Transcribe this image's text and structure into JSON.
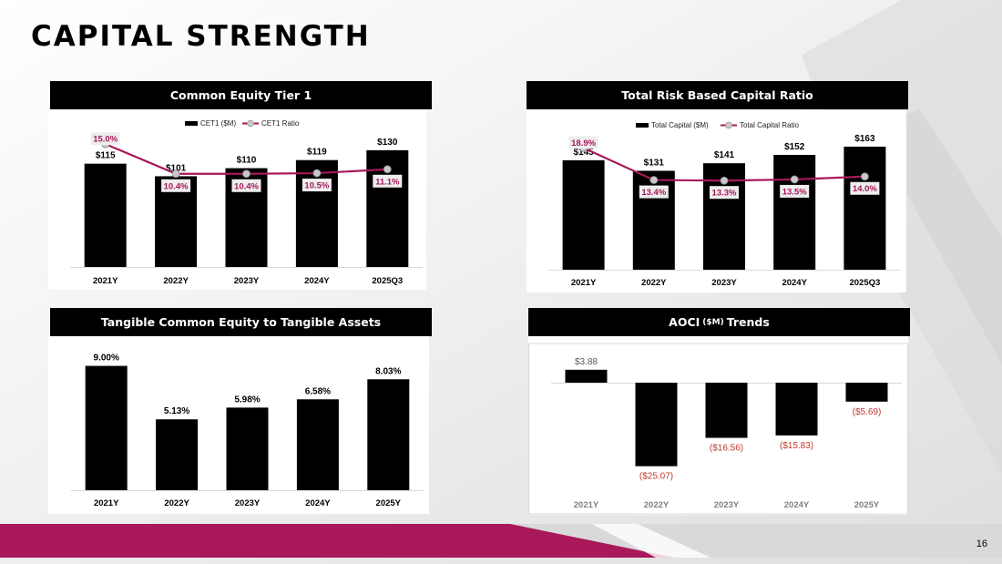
{
  "page": {
    "title": "CAPITAL STRENGTH",
    "page_number": "16",
    "accent_color": "#a8185a"
  },
  "panels": {
    "cet1": {
      "heading": "Common Equity Tier 1"
    },
    "trbc": {
      "heading": "Total Risk Based Capital Ratio"
    },
    "tce": {
      "heading": "Tangible Common Equity to Tangible Assets"
    },
    "aoci": {
      "heading_main": "AOCI",
      "heading_unit": "($M)",
      "heading_tail": "Trends"
    }
  },
  "chart_data": [
    {
      "id": "cet1",
      "type": "bar+line",
      "title": "Common Equity Tier 1",
      "categories": [
        "2021Y",
        "2022Y",
        "2023Y",
        "2024Y",
        "2025Q3"
      ],
      "legend_position": "top",
      "bar_series": {
        "name": "CET1 ($M)",
        "values": [
          115,
          101,
          110,
          119,
          130
        ],
        "labels": [
          "$115",
          "$101",
          "$110",
          "$119",
          "$130"
        ],
        "color": "#000000"
      },
      "line_series": {
        "name": "CET1 Ratio",
        "values": [
          15.0,
          10.4,
          10.4,
          10.5,
          11.1
        ],
        "labels": [
          "15.0%",
          "10.4%",
          "10.4%",
          "10.5%",
          "11.1%"
        ],
        "color": "#a8185a"
      },
      "bar_ylim": [
        0,
        140
      ],
      "line_ylim": [
        -4,
        16
      ]
    },
    {
      "id": "trbc",
      "type": "bar+line",
      "title": "Total Risk Based Capital Ratio",
      "categories": [
        "2021Y",
        "2022Y",
        "2023Y",
        "2024Y",
        "2025Q3"
      ],
      "legend_position": "top",
      "bar_series": {
        "name": "Total Capital ($M)",
        "values": [
          145,
          131,
          141,
          152,
          163
        ],
        "labels": [
          "$145",
          "$131",
          "$141",
          "$152",
          "$163"
        ],
        "color": "#000000"
      },
      "line_series": {
        "name": "Total Capital Ratio",
        "values": [
          18.9,
          13.4,
          13.3,
          13.5,
          14.0
        ],
        "labels": [
          "18.9%",
          "13.4%",
          "13.3%",
          "13.5%",
          "14.0%"
        ],
        "color": "#a8185a"
      },
      "bar_ylim": [
        0,
        175
      ],
      "line_ylim": [
        -2,
        21
      ]
    },
    {
      "id": "tce",
      "type": "bar",
      "title": "Tangible Common Equity to Tangible Assets",
      "categories": [
        "2021Y",
        "2022Y",
        "2023Y",
        "2024Y",
        "2025Y"
      ],
      "values": [
        9.0,
        5.13,
        5.98,
        6.58,
        8.03
      ],
      "labels": [
        "9.00%",
        "5.13%",
        "5.98%",
        "6.58%",
        "8.03%"
      ],
      "ylim": [
        0,
        9.5
      ]
    },
    {
      "id": "aoci",
      "type": "bar",
      "title": "AOCI ($M) Trends",
      "categories": [
        "2021Y",
        "2022Y",
        "2023Y",
        "2024Y",
        "2025Y"
      ],
      "values": [
        3.88,
        -25.07,
        -16.56,
        -15.83,
        -5.69
      ],
      "labels": [
        "$3.88",
        "($25.07)",
        "($16.56)",
        "($15.83)",
        "($5.69)"
      ],
      "positive_label_color": "#595959",
      "negative_label_color": "#c0392b",
      "ylim": [
        -28,
        4
      ]
    }
  ]
}
